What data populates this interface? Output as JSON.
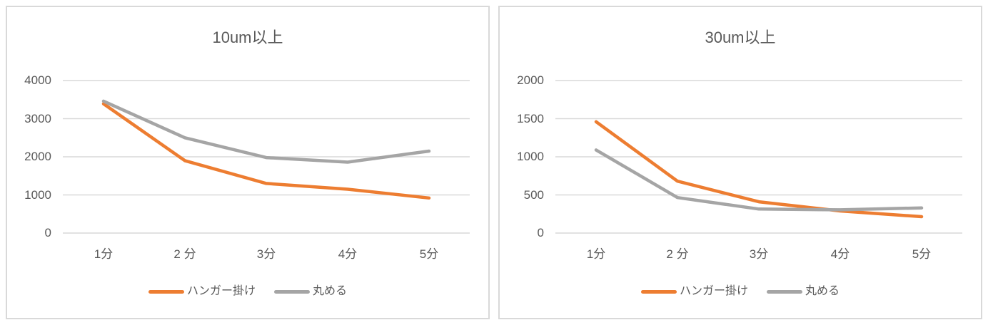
{
  "styles": {
    "text_color": "#595959",
    "grid_color": "#D9D9D9",
    "panel_border_color": "#D9D9D9",
    "background": "#FFFFFF",
    "series_orange": "#ED7D31",
    "series_gray": "#A5A5A5"
  },
  "chart_data": [
    {
      "type": "line",
      "title": "10um以上",
      "categories": [
        "1分",
        "2 分",
        "3分",
        "4分",
        "5分"
      ],
      "series": [
        {
          "name": "ハンガー掛け",
          "color": "#ED7D31",
          "values": [
            3390,
            1900,
            1300,
            1150,
            920
          ]
        },
        {
          "name": "丸める",
          "color": "#A5A5A5",
          "values": [
            3460,
            2500,
            1980,
            1860,
            2150
          ]
        }
      ],
      "ylim": [
        0,
        4000
      ],
      "y_ticks": [
        0,
        1000,
        2000,
        3000,
        4000
      ],
      "xlabel": "",
      "ylabel": "",
      "grid": true,
      "legend_position": "bottom"
    },
    {
      "type": "line",
      "title": "30um以上",
      "categories": [
        "1分",
        "2 分",
        "3分",
        "4分",
        "5分"
      ],
      "series": [
        {
          "name": "ハンガー掛け",
          "color": "#ED7D31",
          "values": [
            1460,
            680,
            410,
            290,
            215
          ]
        },
        {
          "name": "丸める",
          "color": "#A5A5A5",
          "values": [
            1090,
            465,
            315,
            305,
            330
          ]
        }
      ],
      "ylim": [
        0,
        2000
      ],
      "y_ticks": [
        0,
        500,
        1000,
        1500,
        2000
      ],
      "xlabel": "",
      "ylabel": "",
      "grid": true,
      "legend_position": "bottom"
    }
  ]
}
